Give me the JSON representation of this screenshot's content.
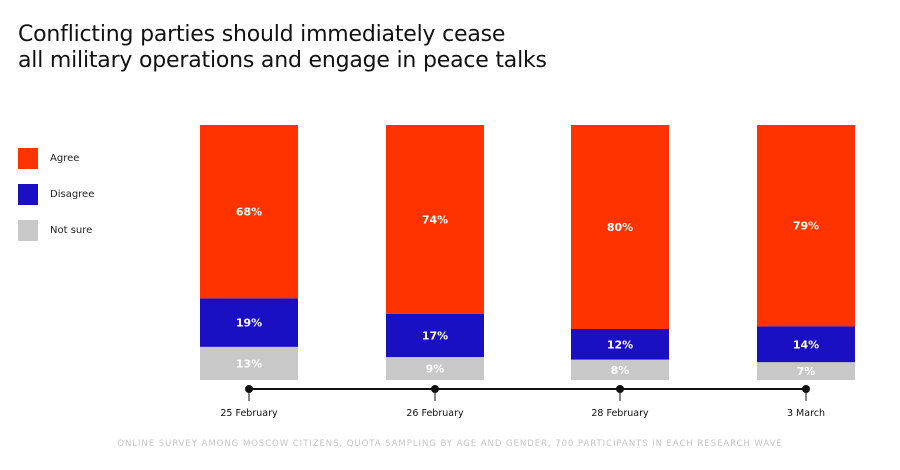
{
  "title_lines": [
    "Conflicting parties should immediately cease",
    "all military operations and engage in peace talks"
  ],
  "legend": [
    {
      "label": "Agree",
      "color": "#ff3300"
    },
    {
      "label": "Disagree",
      "color": "#1a0fc2"
    },
    {
      "label": "Not sure",
      "color": "#c8c8c8"
    }
  ],
  "footnote": "ONLINE SURVEY AMONG MOSCOW CITIZENS, QUOTA SAMPLING BY AGE AND GENDER, 700 PARTICIPANTS IN EACH RESEARCH WAVE",
  "chart_data": {
    "type": "bar",
    "stacked": true,
    "title": "Conflicting parties should immediately cease all military operations and engage in peace talks",
    "categories": [
      "25 February",
      "26 February",
      "28 February",
      "3 March"
    ],
    "series": [
      {
        "name": "Agree",
        "color": "#ff3300",
        "values": [
          68,
          74,
          80,
          79
        ],
        "labels": [
          "68%",
          "74%",
          "80%",
          "79%"
        ]
      },
      {
        "name": "Disagree",
        "color": "#1a0fc2",
        "values": [
          19,
          17,
          12,
          14
        ],
        "labels": [
          "19%",
          "17%",
          "12%",
          "14%"
        ]
      },
      {
        "name": "Not sure",
        "color": "#c8c8c8",
        "values": [
          13,
          9,
          8,
          7
        ],
        "labels": [
          "13%",
          "9%",
          "8%",
          "7%"
        ]
      }
    ],
    "unit": "%",
    "ylim": [
      0,
      100
    ],
    "legend_position": "left"
  }
}
